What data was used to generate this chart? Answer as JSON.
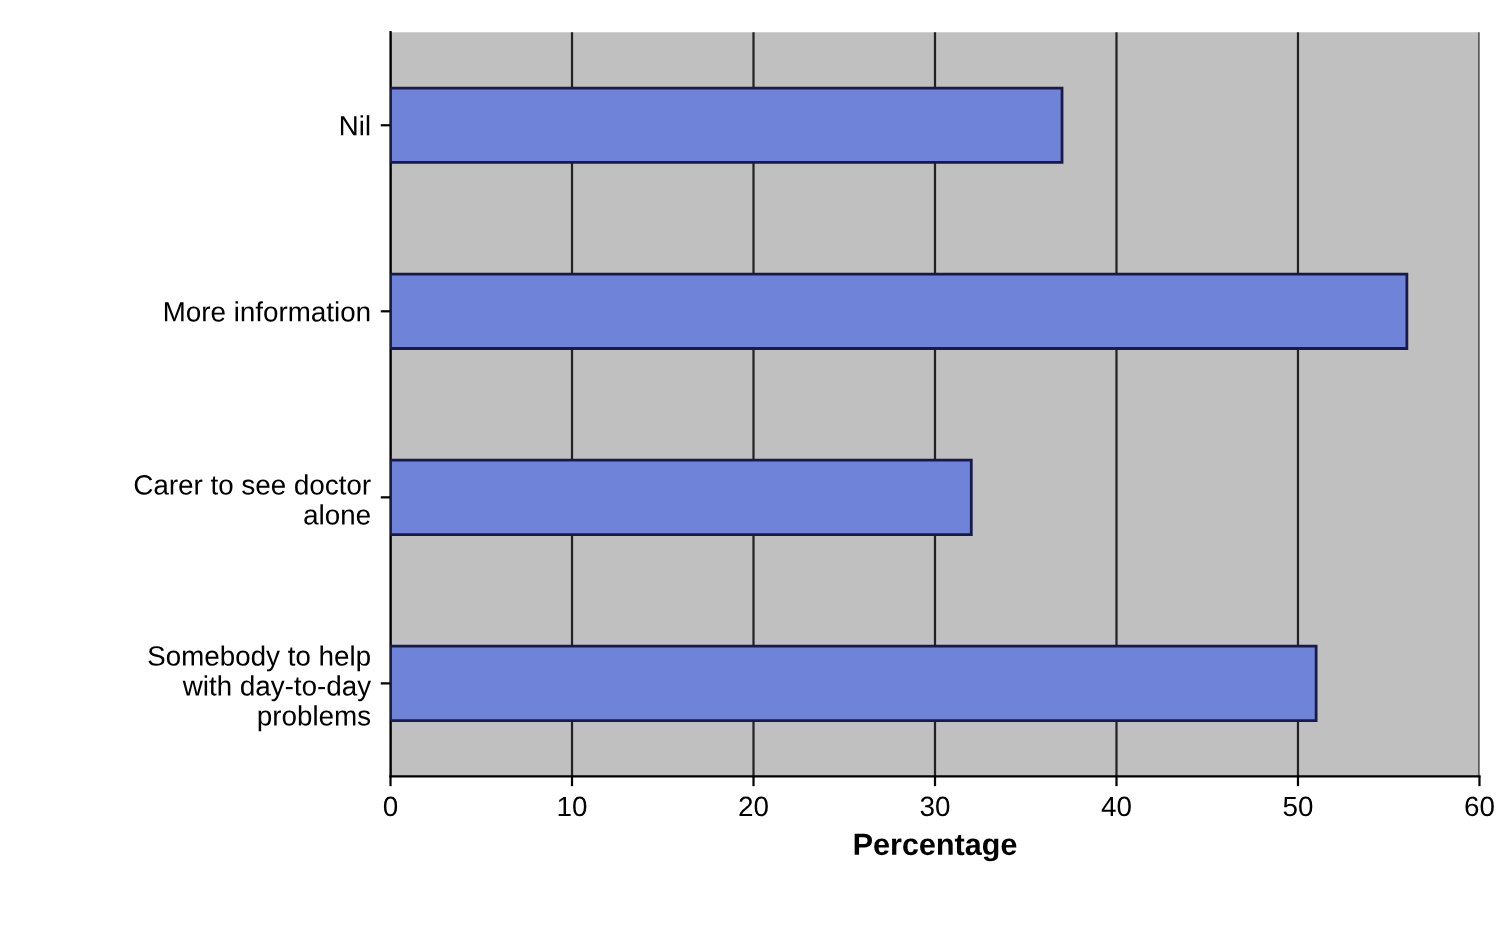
{
  "chart_data": {
    "type": "bar",
    "orientation": "horizontal",
    "xlabel": "Percentage",
    "categories": [
      "Nil",
      "More information",
      "Carer to see doctor\nalone",
      "Somebody to help\nwith day-to-day\nproblems"
    ],
    "values": [
      37,
      56,
      32,
      51
    ],
    "color": "#6f84d8",
    "xlim": [
      0,
      60
    ],
    "xticks": [
      0,
      10,
      20,
      30,
      40,
      50,
      60
    ],
    "grid": "x"
  }
}
